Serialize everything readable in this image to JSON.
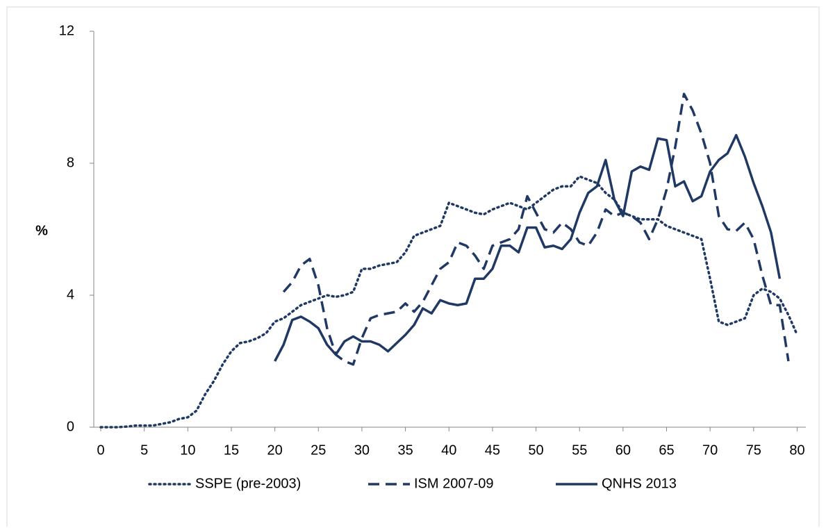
{
  "chart_data": {
    "type": "line",
    "y_label": "%",
    "x": [
      0,
      1,
      2,
      3,
      4,
      5,
      6,
      7,
      8,
      9,
      10,
      11,
      12,
      13,
      14,
      15,
      16,
      17,
      18,
      19,
      20,
      21,
      22,
      23,
      24,
      25,
      26,
      27,
      28,
      29,
      30,
      31,
      32,
      33,
      34,
      35,
      36,
      37,
      38,
      39,
      40,
      41,
      42,
      43,
      44,
      45,
      46,
      47,
      48,
      49,
      50,
      51,
      52,
      53,
      54,
      55,
      56,
      57,
      58,
      59,
      60,
      61,
      62,
      63,
      64,
      65,
      66,
      67,
      68,
      69,
      70,
      71,
      72,
      73,
      74,
      75,
      76,
      77,
      78,
      79,
      80
    ],
    "xlim": [
      -0.8,
      81
    ],
    "xticks": [
      0,
      5,
      10,
      15,
      20,
      25,
      30,
      35,
      40,
      45,
      50,
      55,
      60,
      65,
      70,
      75,
      80
    ],
    "ylim": [
      0,
      12
    ],
    "yticks": [
      0,
      4,
      8,
      12
    ],
    "series": [
      {
        "name": "SSPE (pre-2003)",
        "color": "#1f3864",
        "dash": "dotted",
        "values": [
          0,
          0,
          0,
          0.02,
          0.05,
          0.05,
          0.05,
          0.1,
          0.15,
          0.25,
          0.3,
          0.5,
          1.0,
          1.4,
          1.9,
          2.3,
          2.55,
          2.6,
          2.7,
          2.85,
          3.2,
          3.3,
          3.5,
          3.7,
          3.8,
          3.9,
          4.0,
          3.95,
          4.0,
          4.1,
          4.8,
          4.8,
          4.9,
          4.95,
          5.0,
          5.3,
          5.8,
          5.9,
          6.0,
          6.1,
          6.8,
          6.7,
          6.6,
          6.5,
          6.45,
          6.6,
          6.7,
          6.8,
          6.7,
          6.6,
          6.8,
          7.0,
          7.2,
          7.3,
          7.3,
          7.6,
          7.5,
          7.4,
          7.1,
          6.9,
          6.5,
          6.4,
          6.3,
          6.3,
          6.3,
          6.1,
          6.0,
          5.9,
          5.8,
          5.7,
          4.5,
          3.2,
          3.1,
          3.2,
          3.3,
          4.0,
          4.2,
          4.1,
          3.9,
          3.4,
          2.8
        ]
      },
      {
        "name": "ISM 2007-09",
        "color": "#1f3864",
        "dash": "dashed",
        "values": [
          null,
          null,
          null,
          null,
          null,
          null,
          null,
          null,
          null,
          null,
          null,
          null,
          null,
          null,
          null,
          null,
          null,
          null,
          null,
          null,
          null,
          4.1,
          4.4,
          4.9,
          5.1,
          4.3,
          3.0,
          2.2,
          2.0,
          1.9,
          2.7,
          3.3,
          3.4,
          3.45,
          3.5,
          3.75,
          3.5,
          3.8,
          4.3,
          4.8,
          5.0,
          5.6,
          5.5,
          5.2,
          4.8,
          5.5,
          5.6,
          5.7,
          6.0,
          7.0,
          6.5,
          6.0,
          5.9,
          6.2,
          6.0,
          5.6,
          5.5,
          5.9,
          6.6,
          6.4,
          6.5,
          6.4,
          6.2,
          5.7,
          6.3,
          7.2,
          8.5,
          10.1,
          9.6,
          8.9,
          8.0,
          6.4,
          6.0,
          5.95,
          6.2,
          5.7,
          4.6,
          3.7,
          3.7,
          2.0,
          null
        ]
      },
      {
        "name": "QNHS 2013",
        "color": "#1f3864",
        "dash": "solid",
        "values": [
          null,
          null,
          null,
          null,
          null,
          null,
          null,
          null,
          null,
          null,
          null,
          null,
          null,
          null,
          null,
          null,
          null,
          null,
          null,
          null,
          2.0,
          2.5,
          3.25,
          3.35,
          3.2,
          3.0,
          2.5,
          2.2,
          2.6,
          2.75,
          2.6,
          2.6,
          2.5,
          2.3,
          2.55,
          2.8,
          3.1,
          3.6,
          3.45,
          3.85,
          3.75,
          3.7,
          3.75,
          4.5,
          4.5,
          4.8,
          5.5,
          5.5,
          5.3,
          6.05,
          6.05,
          5.45,
          5.5,
          5.4,
          5.7,
          6.5,
          7.1,
          7.3,
          8.1,
          6.9,
          6.4,
          7.75,
          7.9,
          7.8,
          8.75,
          8.7,
          7.3,
          7.45,
          6.85,
          7.0,
          7.75,
          8.1,
          8.3,
          8.85,
          8.2,
          7.4,
          6.7,
          5.9,
          4.5,
          null,
          null
        ]
      }
    ]
  }
}
